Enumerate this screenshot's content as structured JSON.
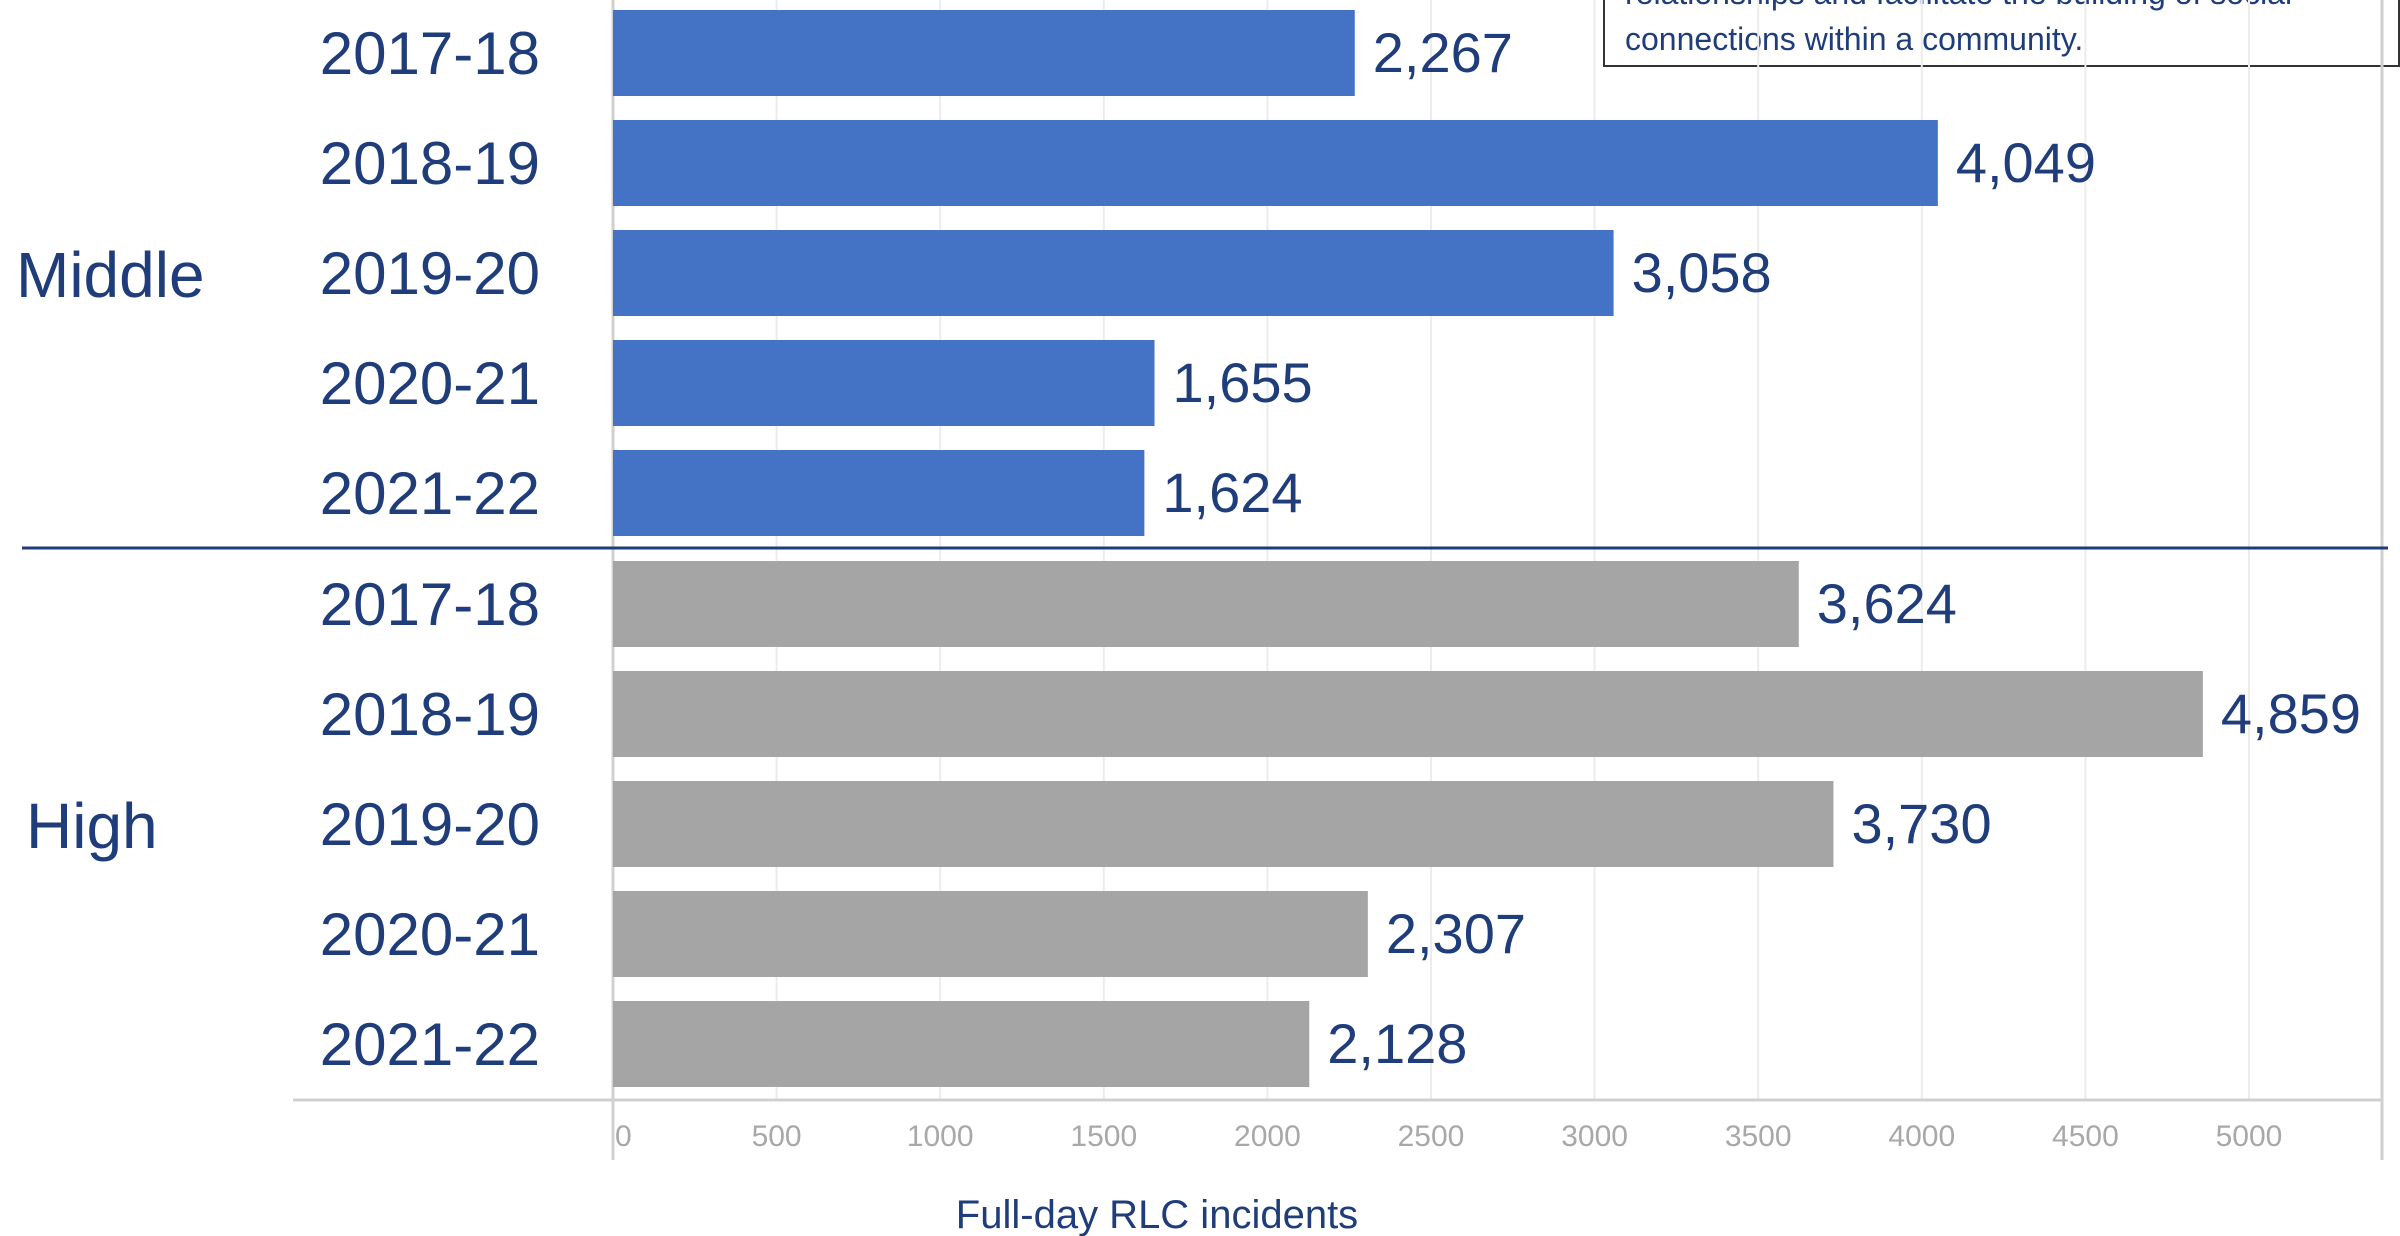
{
  "note": {
    "lines": [
      "relationships and facilitate the building of social",
      "connections within a community."
    ]
  },
  "chart_data": {
    "type": "bar",
    "orientation": "horizontal",
    "xlabel": "Full-day RLC incidents",
    "xlim": [
      0,
      5000
    ],
    "xticks": [
      0,
      500,
      1000,
      1500,
      2000,
      2500,
      3000,
      3500,
      4000,
      4500,
      5000
    ],
    "grid": true,
    "groups": [
      {
        "name": "Middle",
        "color": "#4472c4",
        "categories": [
          "2017-18",
          "2018-19",
          "2019-20",
          "2020-21",
          "2021-22"
        ],
        "values": [
          2267,
          4049,
          3058,
          1655,
          1624
        ],
        "value_labels": [
          "2,267",
          "4,049",
          "3,058",
          "1,655",
          "1,624"
        ]
      },
      {
        "name": "High",
        "color": "#a5a5a5",
        "categories": [
          "2017-18",
          "2018-19",
          "2019-20",
          "2020-21",
          "2021-22"
        ],
        "values": [
          3624,
          4859,
          3730,
          2307,
          2128
        ],
        "value_labels": [
          "3,624",
          "4,859",
          "3,730",
          "2,307",
          "2,128"
        ]
      }
    ],
    "colors": {
      "text": "#1f3d7a",
      "grid": "#ececec",
      "axis": "#d0d0d0",
      "tick": "#a8a8a8"
    }
  }
}
